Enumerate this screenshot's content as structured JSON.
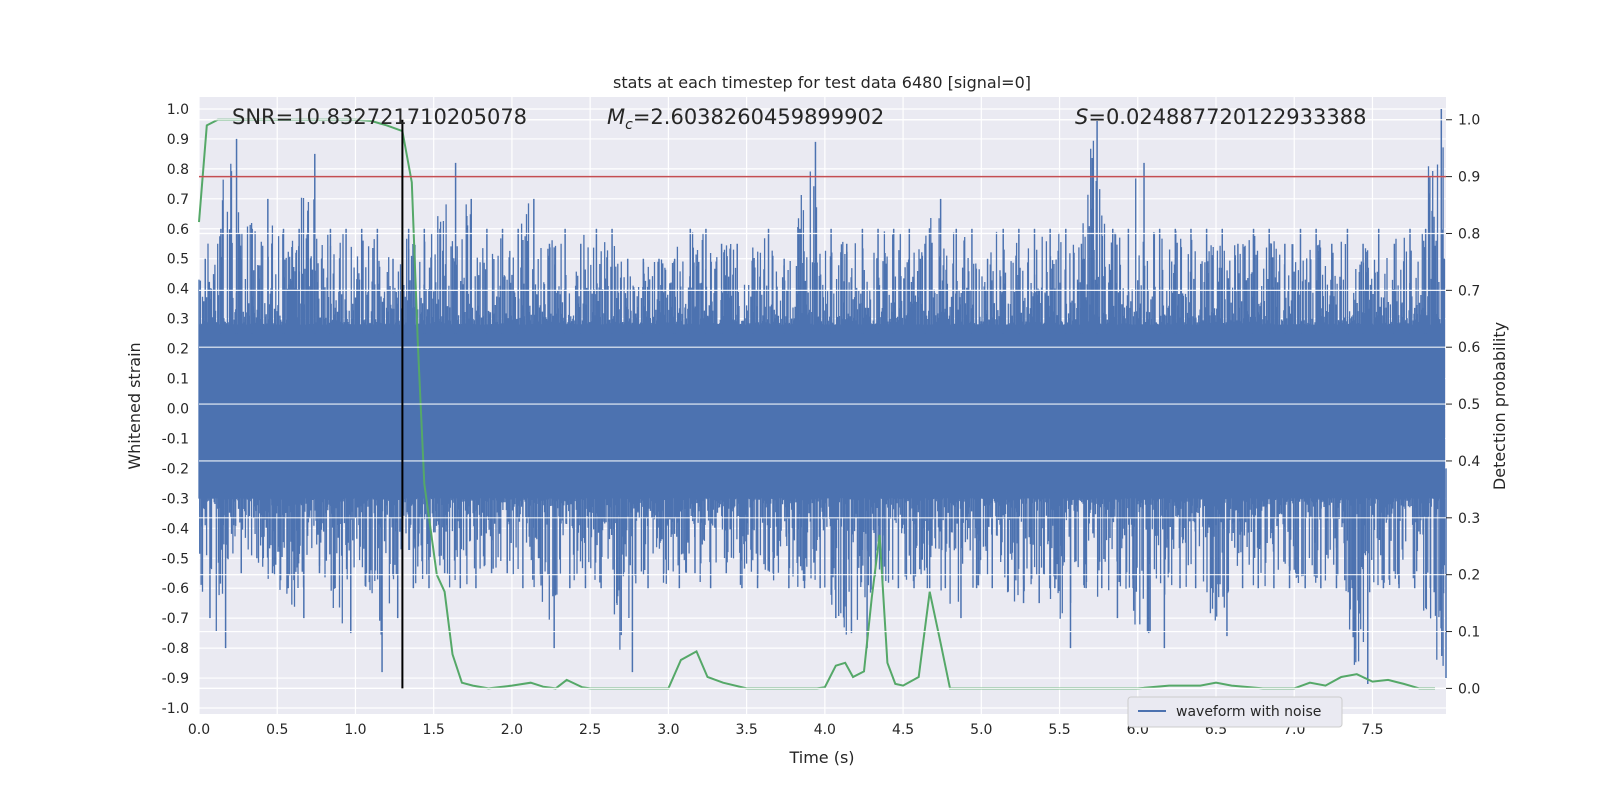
{
  "chart_data": {
    "type": "line",
    "title": "stats at each timestep for test data 6480 [signal=0]",
    "xlabel": "Time (s)",
    "ylabel": "Whitened strain",
    "y2label": "Detection probability",
    "xlim": [
      0.0,
      7.97
    ],
    "ylim": [
      -1.02,
      1.04
    ],
    "y2lim": [
      -0.045,
      1.04
    ],
    "x_ticks": [
      "0.0",
      "0.5",
      "1.0",
      "1.5",
      "2.0",
      "2.5",
      "3.0",
      "3.5",
      "4.0",
      "4.5",
      "5.0",
      "5.5",
      "6.0",
      "6.5",
      "7.0",
      "7.5"
    ],
    "y_ticks": [
      "-1.0",
      "-0.9",
      "-0.8",
      "-0.7",
      "-0.6",
      "-0.5",
      "-0.4",
      "-0.3",
      "-0.2",
      "-0.1",
      "0.0",
      "0.1",
      "0.2",
      "0.3",
      "0.4",
      "0.5",
      "0.6",
      "0.7",
      "0.8",
      "0.9",
      "1.0"
    ],
    "y2_ticks": [
      "0.0",
      "0.1",
      "0.2",
      "0.3",
      "0.4",
      "0.5",
      "0.6",
      "0.7",
      "0.8",
      "0.9",
      "1.0"
    ],
    "annotations": {
      "snr_label": "SNR=10.832721710205078",
      "mc_symbol": "M",
      "mc_subscript": "c",
      "mc_value": "=2.6038260459899902",
      "s_symbol": "S",
      "s_value": "=0.024887720122933388"
    },
    "threshold_line": {
      "axis": "y2",
      "value": 0.9,
      "color": "#c44e52"
    },
    "marker_line": {
      "x": 1.3,
      "y2_from": 0.0,
      "y2_to": 1.0,
      "color": "#000000"
    },
    "series": [
      {
        "name": "waveform with noise",
        "axis": "y",
        "color": "#4c72b0",
        "envelope": {
          "x": [
            0.0,
            0.1,
            0.2,
            0.3,
            0.4,
            0.5,
            0.6,
            0.7,
            0.8,
            0.9,
            1.0,
            1.1,
            1.2,
            1.3,
            1.4,
            1.5,
            1.6,
            1.7,
            1.8,
            1.9,
            2.0,
            2.1,
            2.2,
            2.3,
            2.4,
            2.5,
            2.6,
            2.7,
            2.8,
            2.9,
            3.0,
            3.1,
            3.2,
            3.3,
            3.4,
            3.5,
            3.6,
            3.7,
            3.8,
            3.9,
            4.0,
            4.1,
            4.2,
            4.3,
            4.4,
            4.5,
            4.6,
            4.7,
            4.8,
            4.9,
            5.0,
            5.1,
            5.2,
            5.3,
            5.4,
            5.5,
            5.6,
            5.7,
            5.8,
            5.9,
            6.0,
            6.1,
            6.2,
            6.3,
            6.4,
            6.5,
            6.6,
            6.7,
            6.8,
            6.9,
            7.0,
            7.1,
            7.2,
            7.3,
            7.4,
            7.5,
            7.6,
            7.7,
            7.8,
            7.9
          ],
          "upper": [
            0.5,
            0.6,
            0.9,
            0.6,
            0.7,
            0.6,
            0.6,
            0.85,
            0.6,
            0.6,
            0.6,
            0.6,
            0.5,
            0.6,
            0.6,
            0.6,
            0.82,
            0.7,
            0.6,
            0.6,
            0.6,
            0.7,
            0.55,
            0.6,
            0.55,
            0.6,
            0.6,
            0.5,
            0.5,
            0.5,
            0.5,
            0.6,
            0.6,
            0.55,
            0.55,
            0.5,
            0.6,
            0.5,
            0.6,
            0.89,
            0.6,
            0.55,
            0.6,
            0.6,
            0.6,
            0.6,
            0.55,
            0.7,
            0.6,
            0.6,
            0.5,
            0.6,
            0.6,
            0.6,
            0.6,
            0.6,
            0.55,
            0.96,
            0.6,
            0.6,
            0.82,
            0.6,
            0.6,
            0.6,
            0.6,
            0.6,
            0.55,
            0.6,
            0.6,
            0.55,
            0.6,
            0.6,
            0.55,
            0.6,
            0.55,
            0.6,
            0.55,
            0.6,
            0.6,
            1.0
          ],
          "lower": [
            -0.7,
            -0.8,
            -0.55,
            -0.5,
            -0.55,
            -0.6,
            -0.7,
            -0.55,
            -0.6,
            -0.75,
            -0.55,
            -0.88,
            -0.7,
            -0.6,
            -0.6,
            -0.55,
            -0.6,
            -0.6,
            -0.55,
            -0.55,
            -0.6,
            -0.5,
            -0.8,
            -0.6,
            -0.6,
            -0.6,
            -0.65,
            -0.88,
            -0.6,
            -0.55,
            -0.6,
            -0.55,
            -0.6,
            -0.55,
            -0.6,
            -0.6,
            -0.55,
            -0.6,
            -0.6,
            -0.6,
            -0.7,
            -0.75,
            -0.8,
            -0.6,
            -0.6,
            -0.6,
            -0.6,
            -0.6,
            -0.7,
            -0.6,
            -0.6,
            -0.6,
            -0.65,
            -0.65,
            -0.6,
            -0.8,
            -0.6,
            -0.6,
            -0.7,
            -0.6,
            -0.75,
            -0.8,
            -0.6,
            -0.6,
            -0.6,
            -0.76,
            -0.6,
            -0.6,
            -0.6,
            -0.6,
            -0.6,
            -0.6,
            -0.6,
            -0.6,
            -0.92,
            -0.6,
            -0.6,
            -0.6,
            -0.6,
            -0.9
          ]
        }
      },
      {
        "name": "detection probability",
        "axis": "y2",
        "color": "#55a868",
        "x": [
          0.0,
          0.05,
          0.12,
          0.3,
          0.5,
          0.8,
          1.0,
          1.1,
          1.2,
          1.3,
          1.36,
          1.4,
          1.44,
          1.48,
          1.52,
          1.57,
          1.62,
          1.68,
          1.75,
          1.85,
          2.0,
          2.12,
          2.2,
          2.28,
          2.35,
          2.45,
          2.5,
          2.7,
          2.9,
          3.0,
          3.08,
          3.18,
          3.25,
          3.35,
          3.5,
          3.7,
          3.95,
          4.0,
          4.07,
          4.13,
          4.18,
          4.25,
          4.3,
          4.35,
          4.4,
          4.45,
          4.5,
          4.6,
          4.67,
          4.74,
          4.8,
          4.85,
          5.0,
          5.2,
          5.5,
          5.8,
          6.0,
          6.2,
          6.4,
          6.5,
          6.6,
          6.8,
          7.0,
          7.1,
          7.2,
          7.3,
          7.4,
          7.5,
          7.6,
          7.7,
          7.8,
          7.9
        ],
        "values": [
          0.82,
          0.99,
          1.0,
          1.0,
          1.0,
          1.0,
          1.0,
          0.998,
          0.99,
          0.98,
          0.89,
          0.6,
          0.36,
          0.28,
          0.2,
          0.17,
          0.06,
          0.01,
          0.005,
          0.0,
          0.005,
          0.01,
          0.003,
          0.0,
          0.015,
          0.002,
          0.0,
          0.0,
          0.0,
          0.0,
          0.05,
          0.065,
          0.02,
          0.01,
          0.0,
          0.0,
          0.0,
          0.002,
          0.04,
          0.045,
          0.02,
          0.03,
          0.16,
          0.27,
          0.045,
          0.008,
          0.005,
          0.02,
          0.17,
          0.08,
          0.0,
          0.0,
          0.0,
          0.0,
          0.0,
          0.0,
          0.0,
          0.005,
          0.005,
          0.01,
          0.005,
          0.0,
          0.0,
          0.01,
          0.005,
          0.02,
          0.025,
          0.012,
          0.015,
          0.008,
          0.0,
          0.0
        ]
      }
    ],
    "legend": {
      "entries": [
        "waveform with noise"
      ],
      "placement": "lower-right"
    }
  }
}
